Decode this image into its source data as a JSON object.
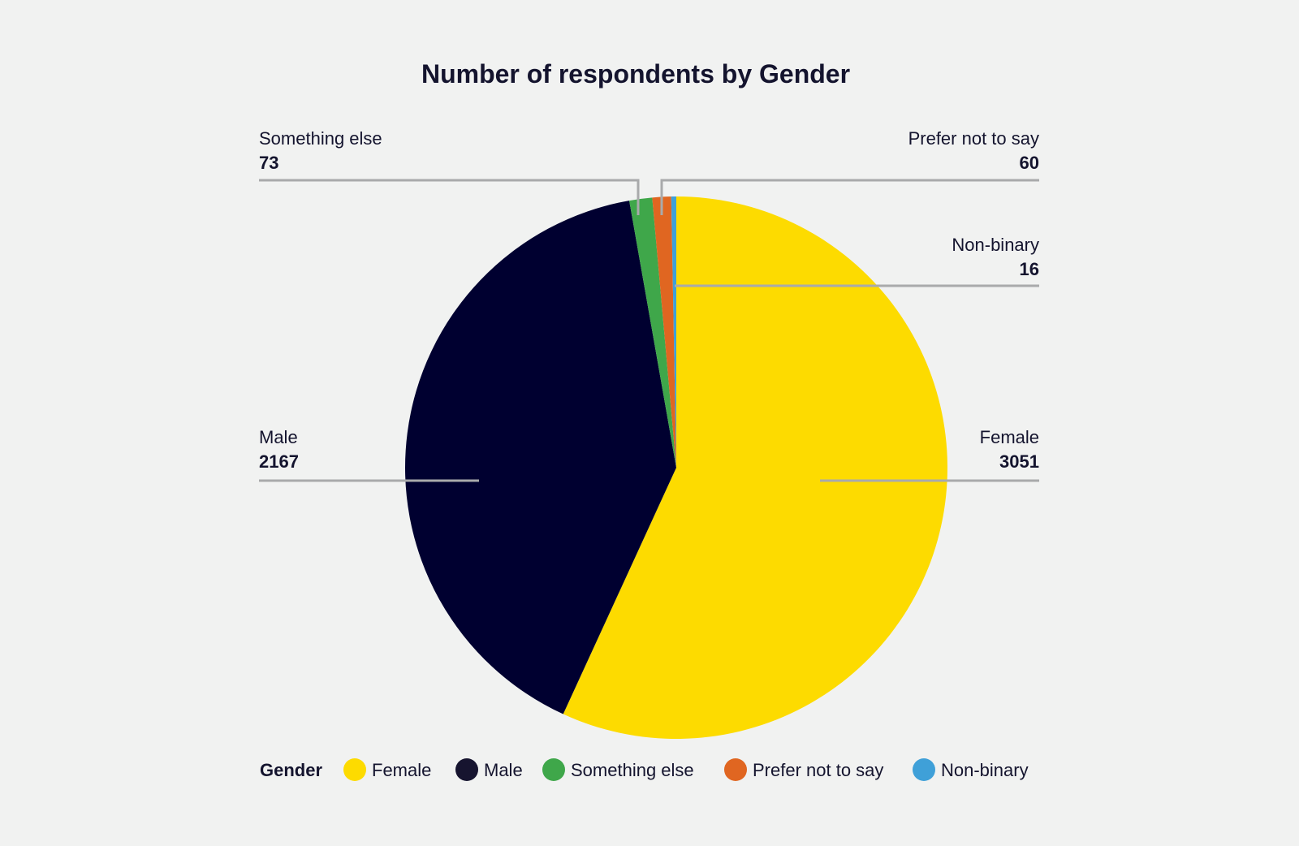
{
  "chart_data": {
    "type": "pie",
    "title": "Number of respondents by Gender",
    "legend_title": "Gender",
    "legend_position": "bottom",
    "start_angle": "top, clockwise",
    "slices": [
      {
        "label": "Female",
        "value": 3051,
        "color": "#fddb00"
      },
      {
        "label": "Male",
        "value": 2167,
        "color": "#000030"
      },
      {
        "label": "Something else",
        "value": 73,
        "color": "#3fa74a"
      },
      {
        "label": "Prefer not to say",
        "value": 60,
        "color": "#e06621"
      },
      {
        "label": "Non-binary",
        "value": 16,
        "color": "#3fa0d8"
      }
    ],
    "legend_marker_colors": [
      "#fddb00",
      "#16142f",
      "#3fa74a",
      "#e06621",
      "#3fa0d8"
    ],
    "leader_line_color": "#a9aaab"
  }
}
